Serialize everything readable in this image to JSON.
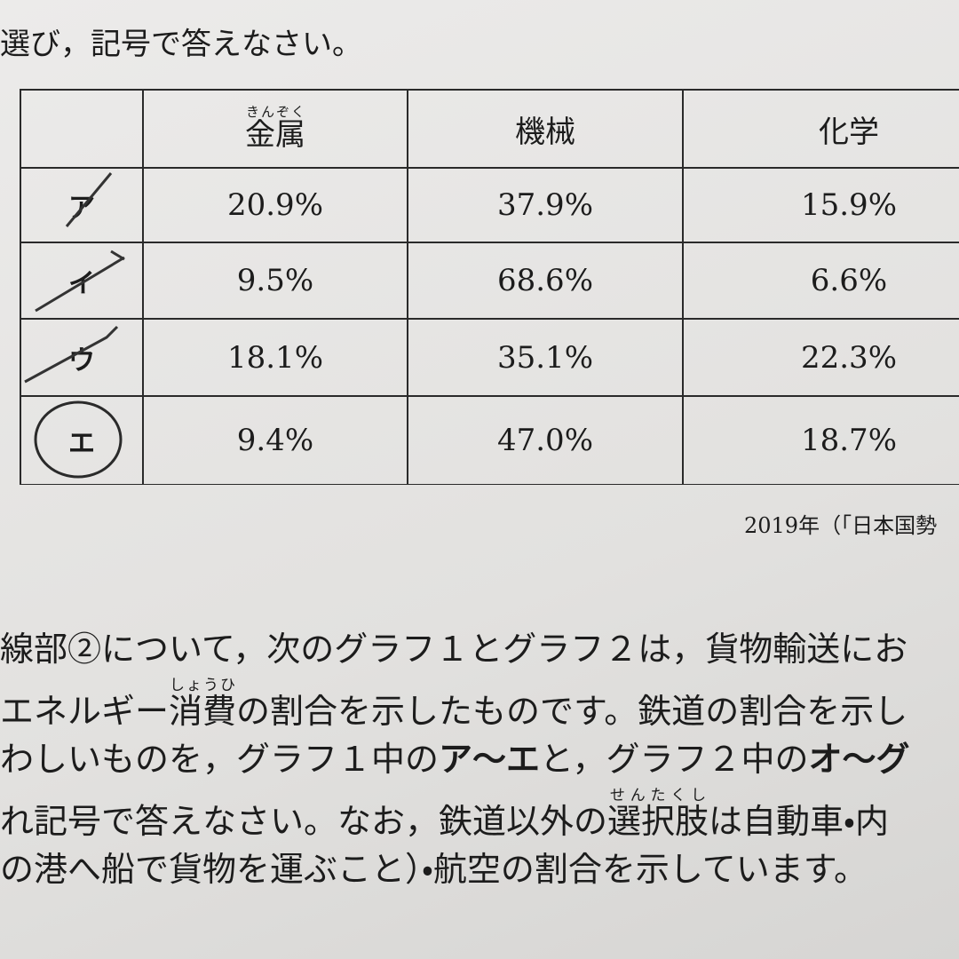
{
  "instruction": "選び，記号で答えなさい。",
  "table": {
    "header": [
      {
        "text": "金属",
        "ruby": "きんぞく"
      },
      {
        "text": "機械"
      },
      {
        "text": "化学"
      }
    ],
    "rows": [
      [
        "ア",
        "20.9%",
        "37.9%",
        "15.9%"
      ],
      [
        "イ",
        "9.5%",
        "68.6%",
        "6.6%"
      ],
      [
        "ウ",
        "18.1%",
        "35.1%",
        "22.3%"
      ],
      [
        "エ",
        "9.4%",
        "47.0%",
        "18.7%"
      ]
    ]
  },
  "source": "2019年（「日本国勢",
  "paragraph": [
    [
      {
        "text": "線部②について，次のグラフ１とグラフ２は，貨物輸送にお"
      }
    ],
    [
      {
        "text": "エネルギー"
      },
      {
        "text": "消費",
        "ruby": "しょうひ"
      },
      {
        "text": "の割合を示したものです。鉄道の割合を示し"
      }
    ],
    [
      {
        "text": "わしいものを，グラフ１中の"
      },
      {
        "text": "ア～エ",
        "bold": true
      },
      {
        "text": "と，グラフ２中の"
      },
      {
        "text": "オ～グ",
        "bold": true
      }
    ],
    [
      {
        "text": "れ記号で答えなさい。なお，鉄道以外の"
      },
      {
        "text": "選択肢",
        "ruby": "せんたくし"
      },
      {
        "text": "は自動車・内"
      }
    ],
    [
      {
        "text": "の港へ船で貨物を運ぶこと）・航空の割合を示しています。"
      }
    ]
  ]
}
